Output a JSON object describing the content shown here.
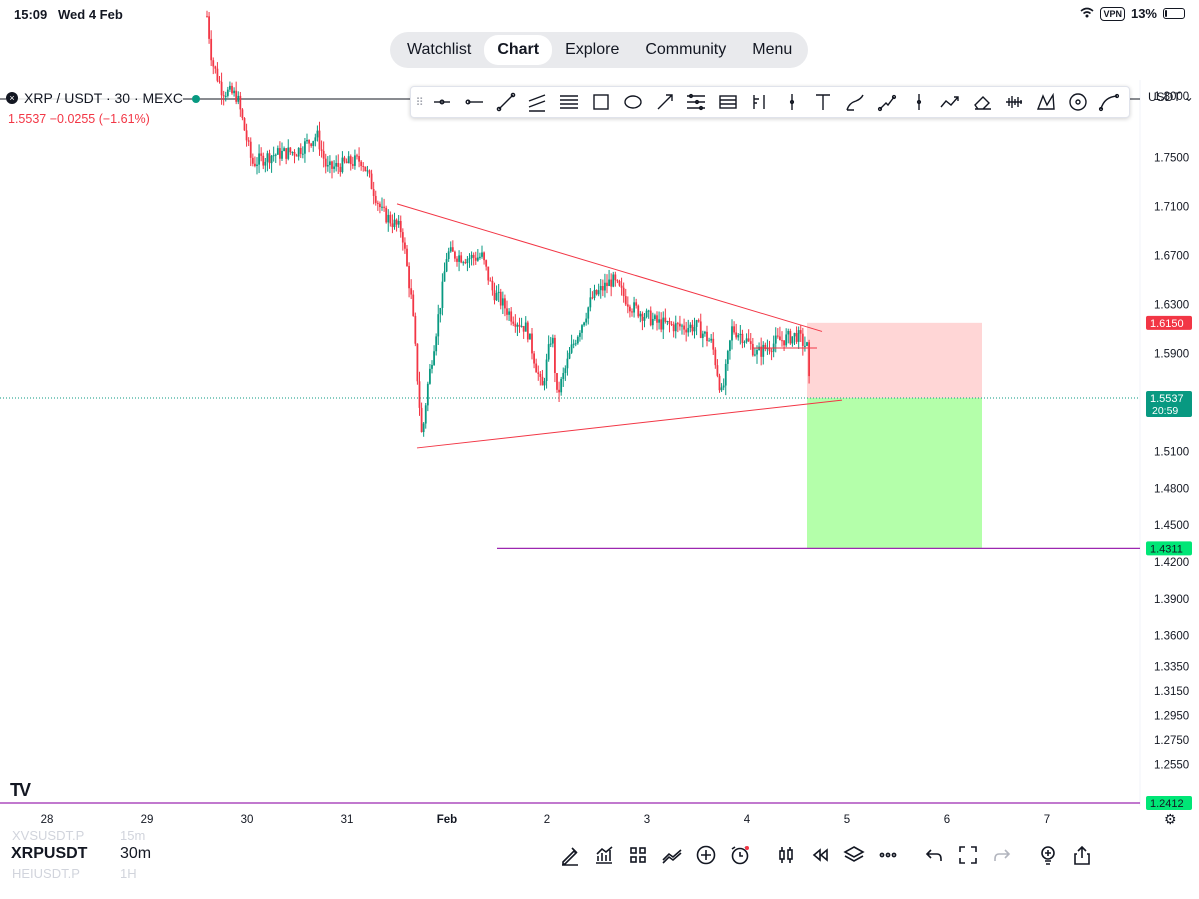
{
  "status_bar": {
    "time": "15:09",
    "date": "Wed 4 Feb",
    "vpn": "VPN",
    "battery": "13%",
    "battery_level": 0.13,
    "icons": [
      "wifi-icon",
      "vpn-badge",
      "battery-icon"
    ]
  },
  "nav": {
    "tabs": [
      {
        "label": "Watchlist",
        "active": false
      },
      {
        "label": "Chart",
        "active": true
      },
      {
        "label": "Explore",
        "active": false
      },
      {
        "label": "Community",
        "active": false
      },
      {
        "label": "Menu",
        "active": false
      }
    ]
  },
  "symbol": {
    "title": "XRP / USDT · 30 · MEXC",
    "last_price": "1.5537",
    "change": "−0.0255 (−1.61%)",
    "currency": "USDT",
    "symbol_code": "XRPUSDT",
    "interval": "30m",
    "ghost_prev_symbol": "XVSUSDT.P",
    "ghost_prev_interval": "15m",
    "ghost_next_symbol": "HEIUSDT.P",
    "ghost_next_interval": "1H"
  },
  "drawing_toolbar": {
    "tools": [
      "horizontal-ray-icon",
      "horizontal-line-icon",
      "trend-line-icon",
      "parallel-channel-icon",
      "fib-retracement-icon",
      "rectangle-icon",
      "ellipse-icon",
      "arrow-icon",
      "pitchfork-icon",
      "gann-box-icon",
      "long-position-icon",
      "vertical-line-icon",
      "text-icon",
      "brush-icon",
      "path-icon",
      "cross-line-icon",
      "polyline-icon",
      "eraser-icon",
      "volume-profile-icon",
      "xabcd-pattern-icon",
      "circle-icon",
      "curve-icon"
    ]
  },
  "chart_data": {
    "type": "candlestick",
    "title": "XRP / USDT · 30 · MEXC",
    "x_tick_labels": [
      "28",
      "29",
      "30",
      "31",
      "Feb",
      "2",
      "3",
      "4",
      "5",
      "6",
      "7"
    ],
    "y_tick_labels": [
      "1.8000",
      "1.7500",
      "1.7100",
      "1.6700",
      "1.6300",
      "1.5900",
      "1.5100",
      "1.4800",
      "1.4500",
      "1.4200",
      "1.3900",
      "1.3600",
      "1.3350",
      "1.3150",
      "1.2950",
      "1.2750",
      "1.2550"
    ],
    "y_range": [
      1.233,
      1.87
    ],
    "series": [
      {
        "values": [
          {
            "day": 29.6,
            "close": 1.865
          },
          {
            "day": 29.65,
            "close": 1.828
          },
          {
            "day": 29.75,
            "close": 1.805
          },
          {
            "day": 29.9,
            "close": 1.8
          },
          {
            "day": 30.05,
            "close": 1.745
          },
          {
            "day": 30.25,
            "close": 1.752
          },
          {
            "day": 30.5,
            "close": 1.755
          },
          {
            "day": 30.7,
            "close": 1.768
          },
          {
            "day": 30.8,
            "close": 1.74
          },
          {
            "day": 31.0,
            "close": 1.745
          },
          {
            "day": 31.15,
            "close": 1.748
          },
          {
            "day": 31.35,
            "close": 1.705
          },
          {
            "day": 31.55,
            "close": 1.69
          },
          {
            "day": 31.65,
            "close": 1.63
          },
          {
            "day": 31.75,
            "close": 1.52
          },
          {
            "day": 31.8,
            "close": 1.56
          },
          {
            "day": 31.95,
            "close": 1.64
          },
          {
            "day": 32.0,
            "close": 1.672
          },
          {
            "day": 32.2,
            "close": 1.668
          },
          {
            "day": 32.35,
            "close": 1.669
          },
          {
            "day": 32.45,
            "close": 1.642
          },
          {
            "day": 32.65,
            "close": 1.62
          },
          {
            "day": 32.8,
            "close": 1.61
          },
          {
            "day": 32.95,
            "close": 1.56
          },
          {
            "day": 33.05,
            "close": 1.608
          },
          {
            "day": 33.1,
            "close": 1.555
          },
          {
            "day": 33.25,
            "close": 1.595
          },
          {
            "day": 33.45,
            "close": 1.635
          },
          {
            "day": 33.65,
            "close": 1.65
          },
          {
            "day": 33.85,
            "close": 1.628
          },
          {
            "day": 34.1,
            "close": 1.615
          },
          {
            "day": 34.3,
            "close": 1.612
          },
          {
            "day": 34.5,
            "close": 1.612
          },
          {
            "day": 34.65,
            "close": 1.598
          },
          {
            "day": 34.75,
            "close": 1.555
          },
          {
            "day": 34.85,
            "close": 1.61
          },
          {
            "day": 34.95,
            "close": 1.605
          },
          {
            "day": 35.1,
            "close": 1.59
          },
          {
            "day": 35.3,
            "close": 1.6
          },
          {
            "day": 35.5,
            "close": 1.605
          },
          {
            "day": 35.6,
            "close": 1.595
          },
          {
            "day": 35.63,
            "close": 1.5537
          }
        ]
      }
    ],
    "drawings": {
      "upper_trendline": {
        "from": {
          "day": 31.5,
          "price": 1.712
        },
        "to": {
          "day": 35.75,
          "price": 1.608
        }
      },
      "lower_trendline": {
        "from": {
          "day": 31.7,
          "price": 1.513
        },
        "to": {
          "day": 35.95,
          "price": 1.552
        }
      },
      "short_horizontal": {
        "from_day": 35.05,
        "to_day": 35.7,
        "price": 1.5945
      },
      "target_line": {
        "from_day": 32.5,
        "price": 1.4311
      },
      "position_tool": {
        "from_day": 35.6,
        "to_day": 37.35,
        "entry": 1.5537,
        "stop": 1.615,
        "target": 1.4311
      }
    },
    "colors": {
      "up": "#089981",
      "down": "#f23645",
      "trendline": "#f23645",
      "loss_zone": "#ffd6d6",
      "profit_zone": "#b4ffaa",
      "target_line": "#9c27b0",
      "last_price_tag": "#089981",
      "stop_tag": "#f23645",
      "target_tag": "#00e676"
    },
    "price_tags": {
      "stop": "1.6150",
      "last": "1.5537",
      "countdown": "20:59",
      "target": "1.4311",
      "bottom": "1.2412"
    }
  },
  "bottom_toolbar": {
    "tools": [
      "draw-pen-icon",
      "indicators-icon",
      "layout-grid-icon",
      "compare-icon",
      "add-icon",
      "alert-icon",
      "candle-type-icon",
      "replay-icon",
      "layers-icon",
      "more-icon",
      "undo-icon",
      "fullscreen-icon",
      "redo-icon",
      "ideas-icon",
      "share-icon"
    ]
  },
  "branding": {
    "logo": "TV"
  }
}
